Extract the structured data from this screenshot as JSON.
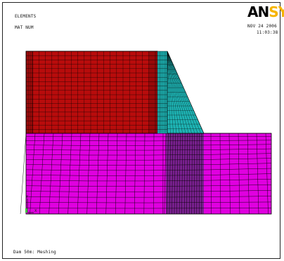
{
  "window": {
    "plot_type": "ELEMENTS",
    "label_mode": "MAT NUM",
    "date": "NOV 24 2006",
    "time": "11:03:38",
    "logo_prefix": "AN",
    "logo_suffix": "SYS",
    "caption": "Dam 50m: Meshing",
    "triad_y": "Y",
    "triad_x": "X"
  },
  "materials": {
    "dam_body": "#b80c0c",
    "transition": "#1eb4b4",
    "foundation": "#e000e0",
    "foundation_dense": "#7a2090",
    "mesh_line": "#000000"
  }
}
